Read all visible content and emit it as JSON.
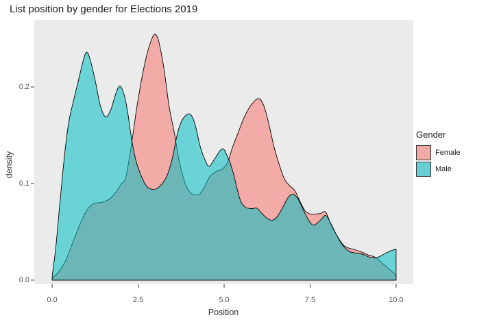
{
  "chart_data": {
    "type": "area",
    "subtype": "overlapping-density",
    "title": "List position by gender for Elections 2019",
    "xlabel": "Position",
    "ylabel": "density",
    "xlim": [
      -0.52,
      10.5
    ],
    "ylim": [
      -0.0043,
      0.2695
    ],
    "grid": "none",
    "panel_bg": "#EBEBEB",
    "outer_bg": "#FFFFFF",
    "fill_alpha": 0.55,
    "outline_color": "#000000",
    "tick_color": "#333333",
    "axis_text_color": "#4D4D4D",
    "axis_title_color": "#333333",
    "title_color": "#1A1A1A",
    "x_ticks": [
      {
        "value": 0,
        "label": "0.0"
      },
      {
        "value": 2.5,
        "label": "2.5"
      },
      {
        "value": 5,
        "label": "5.0"
      },
      {
        "value": 7.5,
        "label": "7.5"
      },
      {
        "value": 10,
        "label": "10.0"
      }
    ],
    "y_ticks": [
      {
        "value": 0,
        "label": "0.0"
      },
      {
        "value": 0.1,
        "label": "0.1"
      },
      {
        "value": 0.2,
        "label": "0.2"
      }
    ],
    "legend": {
      "position": "right",
      "title": "Gender",
      "entries": [
        {
          "label": "Female",
          "color": "#F8766D",
          "swatch": "#F1A9A4"
        },
        {
          "label": "Male",
          "color": "#00BFC4",
          "swatch": "#67CFD3"
        }
      ]
    },
    "series": [
      {
        "name": "Female",
        "color": "#F8766D",
        "points": [
          [
            0.0,
            0.002
          ],
          [
            0.2,
            0.009
          ],
          [
            0.4,
            0.021
          ],
          [
            0.6,
            0.039
          ],
          [
            0.8,
            0.057
          ],
          [
            1.0,
            0.072
          ],
          [
            1.15,
            0.078
          ],
          [
            1.3,
            0.08
          ],
          [
            1.5,
            0.081
          ],
          [
            1.7,
            0.085
          ],
          [
            1.85,
            0.091
          ],
          [
            2.0,
            0.099
          ],
          [
            2.15,
            0.108
          ],
          [
            2.32,
            0.144
          ],
          [
            2.45,
            0.176
          ],
          [
            2.6,
            0.208
          ],
          [
            2.75,
            0.233
          ],
          [
            2.9,
            0.25
          ],
          [
            3.0,
            0.2545
          ],
          [
            3.1,
            0.247
          ],
          [
            3.25,
            0.219
          ],
          [
            3.4,
            0.18
          ],
          [
            3.55,
            0.153
          ],
          [
            3.7,
            0.122
          ],
          [
            3.85,
            0.102
          ],
          [
            4.0,
            0.091
          ],
          [
            4.15,
            0.0885
          ],
          [
            4.3,
            0.0895
          ],
          [
            4.45,
            0.098
          ],
          [
            4.6,
            0.108
          ],
          [
            4.8,
            0.113
          ],
          [
            4.95,
            0.115
          ],
          [
            5.1,
            0.122
          ],
          [
            5.25,
            0.138
          ],
          [
            5.4,
            0.152
          ],
          [
            5.6,
            0.17
          ],
          [
            5.8,
            0.182
          ],
          [
            6.0,
            0.188
          ],
          [
            6.15,
            0.181
          ],
          [
            6.3,
            0.162
          ],
          [
            6.45,
            0.138
          ],
          [
            6.6,
            0.12
          ],
          [
            6.75,
            0.105
          ],
          [
            6.9,
            0.098
          ],
          [
            7.05,
            0.093
          ],
          [
            7.2,
            0.082
          ],
          [
            7.35,
            0.072
          ],
          [
            7.5,
            0.0685
          ],
          [
            7.65,
            0.0685
          ],
          [
            7.8,
            0.069
          ],
          [
            7.95,
            0.0705
          ],
          [
            8.1,
            0.058
          ],
          [
            8.25,
            0.048
          ],
          [
            8.45,
            0.037
          ],
          [
            8.6,
            0.0335
          ],
          [
            8.8,
            0.0315
          ],
          [
            9.0,
            0.029
          ],
          [
            9.2,
            0.026
          ],
          [
            9.4,
            0.0235
          ],
          [
            9.6,
            0.0175
          ],
          [
            9.8,
            0.0115
          ],
          [
            10.0,
            0.005
          ]
        ]
      },
      {
        "name": "Male",
        "color": "#00BFC4",
        "points": [
          [
            0.0,
            0.004
          ],
          [
            0.1,
            0.032
          ],
          [
            0.2,
            0.07
          ],
          [
            0.3,
            0.108
          ],
          [
            0.4,
            0.142
          ],
          [
            0.5,
            0.167
          ],
          [
            0.65,
            0.19
          ],
          [
            0.8,
            0.212
          ],
          [
            0.9,
            0.227
          ],
          [
            1.0,
            0.236
          ],
          [
            1.1,
            0.229
          ],
          [
            1.25,
            0.207
          ],
          [
            1.4,
            0.181
          ],
          [
            1.55,
            0.169
          ],
          [
            1.7,
            0.176
          ],
          [
            1.85,
            0.193
          ],
          [
            1.97,
            0.201
          ],
          [
            2.1,
            0.191
          ],
          [
            2.2,
            0.173
          ],
          [
            2.32,
            0.144
          ],
          [
            2.45,
            0.122
          ],
          [
            2.6,
            0.107
          ],
          [
            2.75,
            0.097
          ],
          [
            2.9,
            0.094
          ],
          [
            3.05,
            0.095
          ],
          [
            3.2,
            0.1
          ],
          [
            3.35,
            0.109
          ],
          [
            3.5,
            0.127
          ],
          [
            3.65,
            0.153
          ],
          [
            3.8,
            0.167
          ],
          [
            4.0,
            0.172
          ],
          [
            4.15,
            0.162
          ],
          [
            4.3,
            0.139
          ],
          [
            4.45,
            0.124
          ],
          [
            4.57,
            0.118
          ],
          [
            4.75,
            0.127
          ],
          [
            4.95,
            0.136
          ],
          [
            5.1,
            0.128
          ],
          [
            5.25,
            0.113
          ],
          [
            5.45,
            0.085
          ],
          [
            5.6,
            0.076
          ],
          [
            5.8,
            0.074
          ],
          [
            5.95,
            0.0745
          ],
          [
            6.1,
            0.069
          ],
          [
            6.25,
            0.064
          ],
          [
            6.4,
            0.062
          ],
          [
            6.55,
            0.066
          ],
          [
            6.7,
            0.075
          ],
          [
            6.85,
            0.085
          ],
          [
            7.0,
            0.089
          ],
          [
            7.15,
            0.084
          ],
          [
            7.3,
            0.073
          ],
          [
            7.45,
            0.0625
          ],
          [
            7.6,
            0.057
          ],
          [
            7.8,
            0.062
          ],
          [
            7.95,
            0.067
          ],
          [
            8.1,
            0.059
          ],
          [
            8.25,
            0.048
          ],
          [
            8.45,
            0.036
          ],
          [
            8.65,
            0.0295
          ],
          [
            8.85,
            0.028
          ],
          [
            9.05,
            0.0265
          ],
          [
            9.25,
            0.0235
          ],
          [
            9.45,
            0.0235
          ],
          [
            9.65,
            0.027
          ],
          [
            9.85,
            0.0305
          ],
          [
            10.0,
            0.032
          ]
        ]
      }
    ]
  }
}
